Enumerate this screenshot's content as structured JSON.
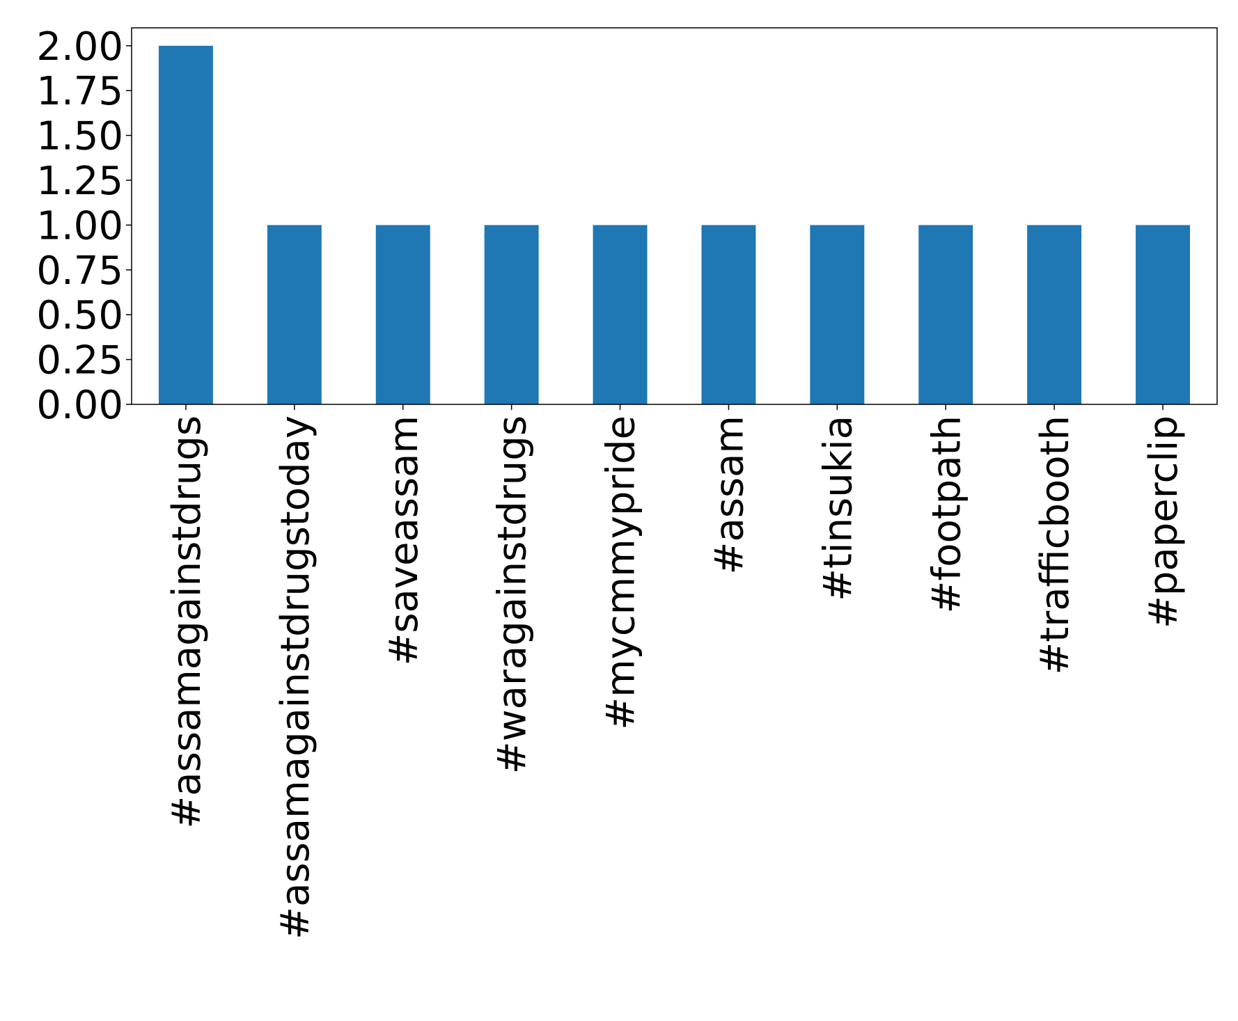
{
  "chart_data": {
    "type": "bar",
    "categories": [
      "#assamagainstdrugs",
      "#assamagainstdrugstoday",
      "#saveassam",
      "#waragainstdrugs",
      "#mycmmypride",
      "#assam",
      "#tinsukia",
      "#footpath",
      "#trafficbooth",
      "#paperclip"
    ],
    "values": [
      2,
      1,
      1,
      1,
      1,
      1,
      1,
      1,
      1,
      1
    ],
    "color": "#1f77b4",
    "ylim": [
      0,
      2.1
    ],
    "yticks": [
      {
        "value": 0,
        "label": "0.00"
      },
      {
        "value": 0.25,
        "label": "0.25"
      },
      {
        "value": 0.5,
        "label": "0.50"
      },
      {
        "value": 0.75,
        "label": "0.75"
      },
      {
        "value": 1,
        "label": "1.00"
      },
      {
        "value": 1.25,
        "label": "1.25"
      },
      {
        "value": 1.5,
        "label": "1.50"
      },
      {
        "value": 1.75,
        "label": "1.75"
      },
      {
        "value": 2,
        "label": "2.00"
      }
    ],
    "grid": false
  }
}
